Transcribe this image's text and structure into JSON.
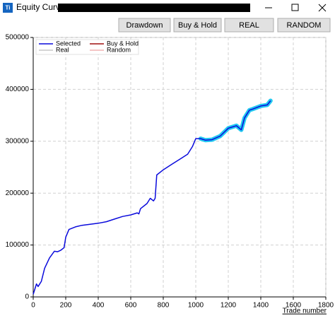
{
  "window": {
    "icon": "Ti",
    "title": "Equity Curve -",
    "buttons": [
      "Drawdown",
      "Buy & Hold",
      "REAL",
      "RANDOM"
    ]
  },
  "chart_data": {
    "type": "line",
    "xlabel": "Trade number",
    "x": [
      0,
      10,
      20,
      30,
      50,
      70,
      100,
      130,
      150,
      170,
      190,
      200,
      220,
      260,
      300,
      350,
      400,
      450,
      500,
      550,
      600,
      640,
      650,
      660,
      700,
      720,
      740,
      750,
      760,
      800,
      850,
      900,
      950,
      980,
      1000,
      1030,
      1060,
      1100,
      1150,
      1200,
      1250,
      1280,
      1300,
      1330,
      1350,
      1400,
      1440,
      1460
    ],
    "series": [
      {
        "name": "Selected",
        "color": "#0a0adc",
        "highlight_color": "#22c8f0",
        "highlight_range": [
          1030,
          1460
        ],
        "values": [
          5000,
          15000,
          25000,
          20000,
          30000,
          55000,
          75000,
          88000,
          87000,
          90000,
          95000,
          115000,
          130000,
          135000,
          138000,
          140000,
          142000,
          145000,
          150000,
          155000,
          158000,
          162000,
          160000,
          170000,
          180000,
          190000,
          185000,
          190000,
          235000,
          245000,
          255000,
          265000,
          275000,
          290000,
          305000,
          305000,
          302000,
          303000,
          310000,
          325000,
          330000,
          322000,
          345000,
          360000,
          362000,
          368000,
          370000,
          378000
        ]
      },
      {
        "name": "Buy & Hold",
        "color": "#a01010",
        "values": [
          null,
          null,
          null,
          null,
          null,
          null,
          null,
          null,
          null,
          null,
          null,
          null,
          null,
          null,
          null,
          null,
          null,
          null,
          null,
          null,
          null,
          null,
          null,
          null,
          null,
          null,
          null,
          null,
          null,
          null,
          null,
          null,
          null,
          null,
          null,
          null,
          null,
          null,
          null,
          null,
          null,
          null,
          null,
          null,
          null,
          null,
          null,
          null
        ]
      },
      {
        "name": "Real",
        "color": "#c8c8c8",
        "values": [
          null,
          null,
          null,
          null,
          null,
          null,
          null,
          null,
          null,
          null,
          null,
          null,
          null,
          null,
          null,
          null,
          null,
          null,
          null,
          null,
          null,
          null,
          null,
          null,
          null,
          null,
          null,
          null,
          null,
          null,
          null,
          null,
          null,
          null,
          null,
          null,
          null,
          null,
          null,
          null,
          null,
          null,
          null,
          null,
          null,
          null,
          null,
          null
        ]
      },
      {
        "name": "Random",
        "color": "#f0b4b4",
        "values": [
          null,
          null,
          null,
          null,
          null,
          null,
          null,
          null,
          null,
          null,
          null,
          null,
          null,
          null,
          null,
          null,
          null,
          null,
          null,
          null,
          null,
          null,
          null,
          null,
          null,
          null,
          null,
          null,
          null,
          null,
          null,
          null,
          null,
          null,
          null,
          null,
          null,
          null,
          null,
          null,
          null,
          null,
          null,
          null,
          null,
          null,
          null,
          null
        ]
      }
    ],
    "xlim": [
      0,
      1800
    ],
    "xticks": [
      0,
      200,
      400,
      600,
      800,
      1000,
      1200,
      1400,
      1600,
      1800
    ],
    "ylim": [
      0,
      500000
    ],
    "yticks": [
      0,
      100000,
      200000,
      300000,
      400000,
      500000
    ],
    "grid": true,
    "legend": "top-left"
  }
}
